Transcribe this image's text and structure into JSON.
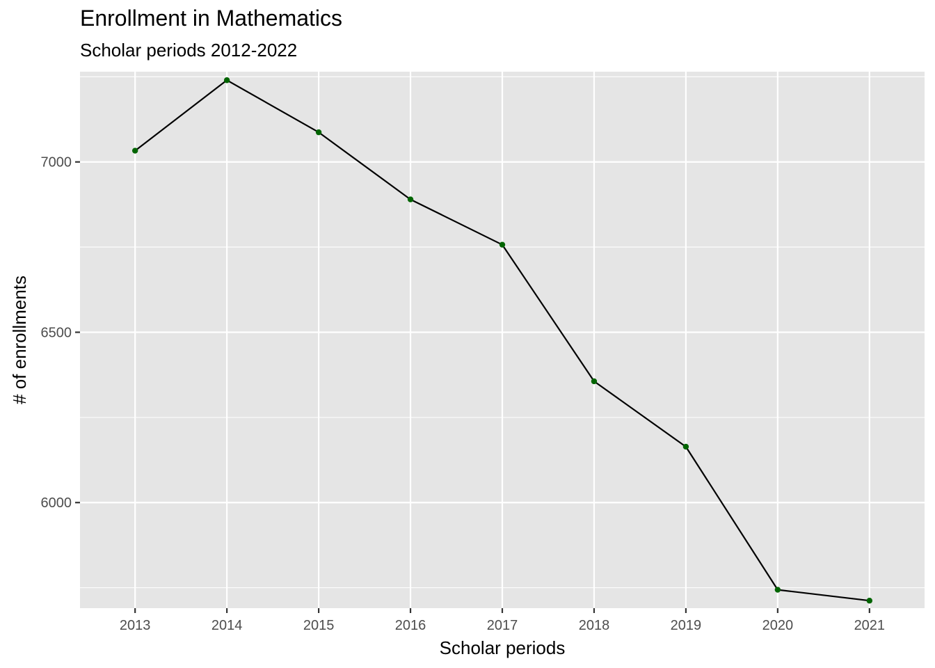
{
  "chart_data": {
    "type": "line",
    "title": "Enrollment in Mathematics",
    "subtitle": "Scholar periods 2012-2022",
    "xlabel": "Scholar periods",
    "ylabel": "# of enrollments",
    "x": [
      "2013",
      "2014",
      "2015",
      "2016",
      "2017",
      "2018",
      "2019",
      "2020",
      "2021"
    ],
    "series": [
      {
        "values": [
          7033,
          7240,
          7087,
          6890,
          6757,
          6356,
          6164,
          5744,
          5712
        ]
      }
    ],
    "ylim": [
      5690,
      7265
    ],
    "yticks": [
      6000,
      6500,
      7000
    ],
    "yminor": [
      5750,
      6250,
      6750,
      7250
    ],
    "grid": true,
    "panel_color": "#e5e5e5",
    "grid_color": "#ffffff",
    "line_color": "#000000",
    "point_color": "#006400",
    "axis_text_color": "#4d4d4d"
  }
}
